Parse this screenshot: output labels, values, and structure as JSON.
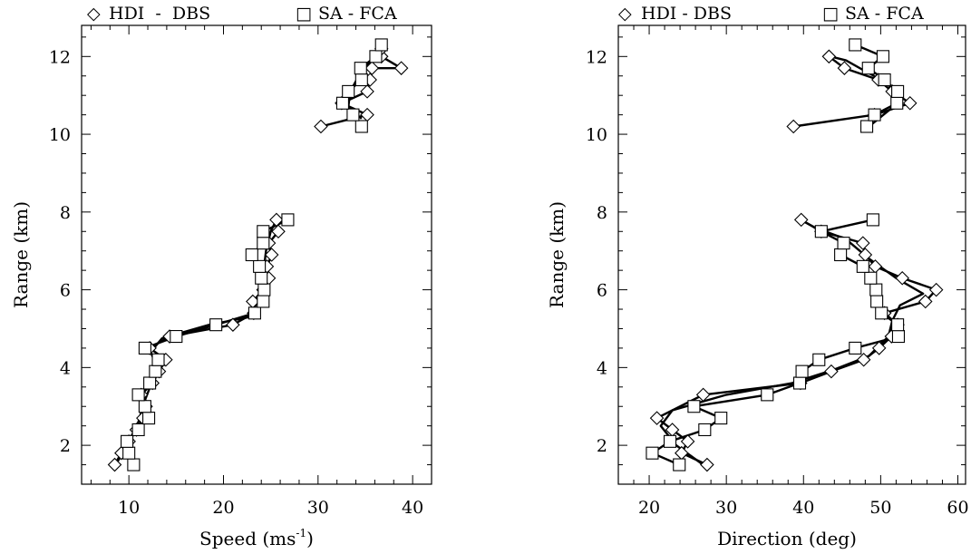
{
  "chart_data": [
    {
      "type": "line",
      "xlabel": "Speed (ms",
      "xlabel_superscript": "-1",
      "xlabel_close": ")",
      "ylabel": "Range (km)",
      "xlim": [
        5,
        42
      ],
      "ylim": [
        1,
        12.8
      ],
      "xticks": [
        10,
        20,
        30,
        40
      ],
      "yticks": [
        2,
        4,
        6,
        8,
        10,
        12
      ],
      "legend": [
        {
          "symbol": "◇",
          "label": "HDI - DBS"
        },
        {
          "symbol": "□",
          "label": "SA - FCA"
        }
      ],
      "legend_position": "top",
      "series": [
        {
          "name": "HDI - DBS",
          "marker": "diamond",
          "segments": [
            [
              [
                8.5,
                1.5
              ],
              [
                9.2,
                1.8
              ],
              [
                10,
                2.1
              ],
              [
                10.8,
                2.4
              ],
              [
                11.5,
                2.7
              ],
              [
                11.8,
                3.0
              ],
              [
                11.3,
                3.3
              ],
              [
                12.5,
                3.6
              ],
              [
                13.2,
                3.9
              ],
              [
                13.9,
                4.2
              ],
              [
                12.2,
                4.5
              ],
              [
                14.3,
                4.8
              ],
              [
                21,
                5.1
              ],
              [
                23.2,
                5.4
              ],
              [
                23.1,
                5.7
              ],
              [
                24.2,
                6.0
              ],
              [
                24.8,
                6.3
              ],
              [
                24.6,
                6.6
              ],
              [
                25.1,
                6.9
              ],
              [
                24.8,
                7.2
              ],
              [
                25.8,
                7.5
              ],
              [
                25.6,
                7.8
              ]
            ],
            [
              [
                30.3,
                10.2
              ],
              [
                35.2,
                10.5
              ],
              [
                32.5,
                10.8
              ],
              [
                35.2,
                11.1
              ],
              [
                35.5,
                11.4
              ],
              [
                35.7,
                11.7
              ],
              [
                38.8,
                11.7
              ],
              [
                36.7,
                12.0
              ],
              [
                36.7,
                12.2
              ]
            ]
          ],
          "smooth_segments": [
            [
              [
                8.6,
                1.5
              ],
              [
                9.8,
                2.0
              ],
              [
                11.0,
                2.6
              ],
              [
                11.6,
                3.1
              ],
              [
                12.4,
                3.6
              ],
              [
                13.0,
                4.0
              ],
              [
                12.3,
                4.4
              ],
              [
                13.5,
                4.75
              ],
              [
                18.5,
                5.1
              ],
              [
                22.8,
                5.3
              ],
              [
                23.8,
                5.8
              ],
              [
                24.2,
                6.4
              ],
              [
                24.5,
                7.0
              ],
              [
                25.0,
                7.5
              ],
              [
                25.4,
                7.7
              ]
            ],
            [
              [
                34.6,
                10.4
              ],
              [
                33.2,
                10.7
              ],
              [
                33.4,
                11.1
              ],
              [
                34.3,
                11.5
              ],
              [
                35.6,
                11.9
              ],
              [
                36.5,
                12.2
              ]
            ]
          ]
        },
        {
          "name": "SA - FCA",
          "marker": "square",
          "segments": [
            [
              [
                10.5,
                1.5
              ],
              [
                10.0,
                1.8
              ],
              [
                9.8,
                2.1
              ],
              [
                11.0,
                2.4
              ],
              [
                12.1,
                2.7
              ],
              [
                11.7,
                3.0
              ],
              [
                11.0,
                3.3
              ],
              [
                12.2,
                3.6
              ],
              [
                12.8,
                3.9
              ],
              [
                13.1,
                4.2
              ],
              [
                11.7,
                4.5
              ],
              [
                15.0,
                4.8
              ],
              [
                19.2,
                5.1
              ],
              [
                23.3,
                5.4
              ],
              [
                24.2,
                5.7
              ],
              [
                24.3,
                6.0
              ],
              [
                24.0,
                6.3
              ],
              [
                23.8,
                6.6
              ],
              [
                23.0,
                6.9
              ],
              [
                24.2,
                7.2
              ],
              [
                24.2,
                7.5
              ],
              [
                26.8,
                7.8
              ]
            ],
            [
              [
                34.6,
                10.2
              ],
              [
                33.7,
                10.5
              ],
              [
                32.6,
                10.8
              ],
              [
                33.2,
                11.1
              ],
              [
                34.6,
                11.4
              ],
              [
                34.5,
                11.7
              ],
              [
                36.1,
                12.0
              ],
              [
                36.7,
                12.3
              ]
            ]
          ],
          "smooth_segments": []
        }
      ]
    },
    {
      "type": "line",
      "xlabel": "Direction (deg)",
      "ylabel": "Range (km)",
      "xlim": [
        16,
        61
      ],
      "ylim": [
        1,
        12.8
      ],
      "xticks": [
        20,
        30,
        40,
        50,
        60
      ],
      "yticks": [
        2,
        4,
        6,
        8,
        10,
        12
      ],
      "legend": [
        {
          "symbol": "◇",
          "label": "HDI - DBS"
        },
        {
          "symbol": "□",
          "label": "SA - FCA"
        }
      ],
      "legend_position": "top",
      "series": [
        {
          "name": "HDI - DBS",
          "marker": "diamond",
          "segments": [
            [
              [
                27.5,
                1.5
              ],
              [
                24.2,
                1.8
              ],
              [
                25.0,
                2.1
              ],
              [
                23.0,
                2.4
              ],
              [
                21.0,
                2.7
              ],
              [
                27.0,
                3.3
              ],
              [
                39.6,
                3.6
              ],
              [
                43.6,
                3.9
              ],
              [
                47.8,
                4.2
              ],
              [
                49.8,
                4.5
              ],
              [
                51.4,
                4.8
              ],
              [
                52.2,
                5.1
              ],
              [
                50.5,
                5.4
              ],
              [
                55.8,
                5.7
              ],
              [
                57.2,
                6.0
              ],
              [
                52.8,
                6.3
              ],
              [
                49.3,
                6.6
              ],
              [
                48.0,
                6.9
              ],
              [
                47.7,
                7.2
              ],
              [
                42.3,
                7.5
              ],
              [
                39.7,
                7.8
              ]
            ],
            [
              [
                38.7,
                10.2
              ],
              [
                49.2,
                10.5
              ],
              [
                53.8,
                10.8
              ],
              [
                51.5,
                11.1
              ],
              [
                49.7,
                11.4
              ],
              [
                45.3,
                11.7
              ],
              [
                43.3,
                12.0
              ]
            ]
          ],
          "smooth_segments": [
            [
              [
                27.0,
                1.5
              ],
              [
                23.5,
                2.0
              ],
              [
                21.5,
                2.5
              ],
              [
                23.0,
                2.9
              ],
              [
                30.0,
                3.3
              ],
              [
                38.5,
                3.6
              ],
              [
                44.0,
                3.95
              ],
              [
                48.5,
                4.3
              ],
              [
                51.0,
                4.8
              ],
              [
                51.5,
                5.2
              ],
              [
                52.5,
                5.6
              ],
              [
                55.5,
                5.9
              ],
              [
                52.0,
                6.3
              ],
              [
                48.5,
                6.8
              ],
              [
                45.5,
                7.3
              ],
              [
                41.5,
                7.6
              ],
              [
                39.6,
                7.8
              ]
            ],
            [
              [
                48.5,
                10.2
              ],
              [
                52.2,
                10.8
              ],
              [
                51.0,
                11.3
              ],
              [
                48.2,
                11.6
              ],
              [
                45.5,
                11.9
              ],
              [
                43.5,
                12.0
              ]
            ]
          ]
        },
        {
          "name": "SA - FCA",
          "marker": "square",
          "segments": [
            [
              [
                23.9,
                1.5
              ],
              [
                20.4,
                1.8
              ],
              [
                22.7,
                2.1
              ],
              [
                27.2,
                2.4
              ],
              [
                29.3,
                2.7
              ],
              [
                25.8,
                3.0
              ],
              [
                35.3,
                3.3
              ],
              [
                39.5,
                3.6
              ],
              [
                39.8,
                3.9
              ],
              [
                42.0,
                4.2
              ],
              [
                46.7,
                4.5
              ],
              [
                52.3,
                4.8
              ],
              [
                52.2,
                5.1
              ],
              [
                50.1,
                5.4
              ],
              [
                49.5,
                5.7
              ],
              [
                49.4,
                6.0
              ],
              [
                48.7,
                6.3
              ],
              [
                47.7,
                6.6
              ],
              [
                44.8,
                6.9
              ],
              [
                45.2,
                7.2
              ],
              [
                42.3,
                7.5
              ],
              [
                49.0,
                7.8
              ]
            ],
            [
              [
                48.2,
                10.2
              ],
              [
                49.2,
                10.5
              ],
              [
                52.1,
                10.8
              ],
              [
                52.2,
                11.1
              ],
              [
                50.5,
                11.4
              ],
              [
                48.4,
                11.7
              ],
              [
                50.3,
                12.0
              ],
              [
                46.7,
                12.3
              ]
            ]
          ],
          "smooth_segments": []
        }
      ]
    }
  ]
}
